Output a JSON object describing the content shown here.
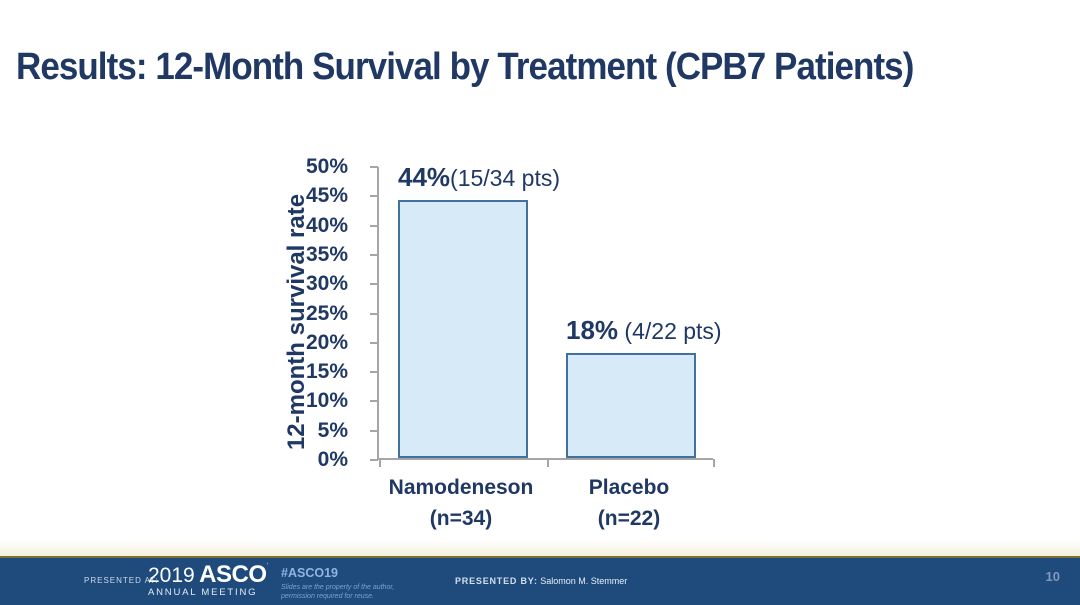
{
  "slide": {
    "title": "Results: 12-Month Survival by Treatment (CPB7 Patients)",
    "page_number": "10"
  },
  "chart_data": {
    "type": "bar",
    "title": "",
    "xlabel": "",
    "ylabel": "12-month survival rate",
    "ylim": [
      0,
      50
    ],
    "ytick_step": 5,
    "ytick_suffix": "%",
    "grid": false,
    "legend": "none",
    "bar_fill": "#d6eaf8",
    "bar_border": "#41719c",
    "categories": [
      "Namodeneson (n=34)",
      "Placebo (n=22)"
    ],
    "values": [
      44,
      18
    ],
    "bars": [
      {
        "label_line1": "Namodeneson",
        "label_line2": "(n=34)",
        "value": 44,
        "annotation_bold": "44%",
        "annotation_rest": "(15/34 pts)"
      },
      {
        "label_line1": "Placebo",
        "label_line2": "(n=22)",
        "value": 18,
        "annotation_bold": "18%",
        "annotation_rest": " (4/22 pts)"
      }
    ]
  },
  "footer": {
    "presented_at_label": "PRESENTED AT:",
    "logo_year": "2019",
    "logo_name": "ASCO",
    "logo_sub": "ANNUAL MEETING",
    "hashtag": "#ASCO19",
    "disclaimer_line1": "Slides are the property of the author,",
    "disclaimer_line2": "permission required for reuse.",
    "presented_by_label": "PRESENTED BY:",
    "presented_by_name": "Salomon M. Stemmer"
  },
  "colors": {
    "title_navy": "#1f3864",
    "axis_gray": "#a6a6a6",
    "footer_navy": "#1e4b7c",
    "gold_line": "#7d7031",
    "bar_fill": "#d6eaf8",
    "bar_border": "#41719c"
  }
}
